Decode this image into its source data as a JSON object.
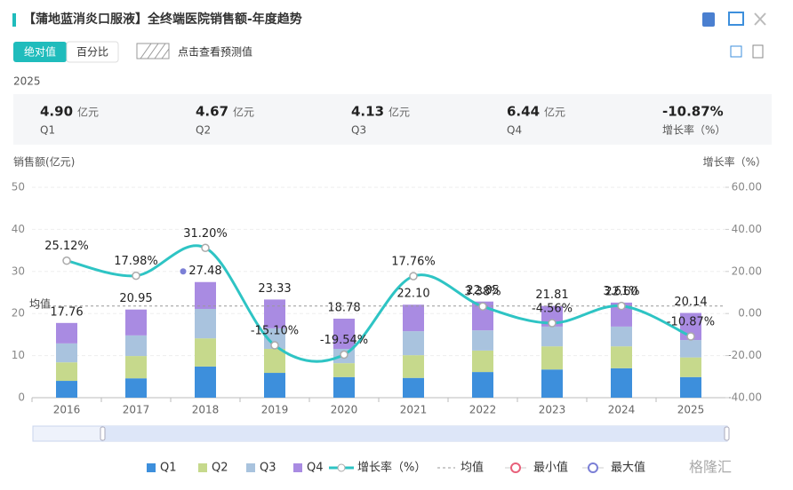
{
  "header": {
    "title": "【蒲地蓝消炎口服液】全终端医院销售额-年度趋势"
  },
  "toolbar": {
    "buttons": [
      "绝对值",
      "百分比"
    ],
    "forecast": "点击查看预测值"
  },
  "summary": {
    "year": "2025",
    "cards": [
      {
        "value": "4.90",
        "unit": "亿元",
        "label": "Q1"
      },
      {
        "value": "4.67",
        "unit": "亿元",
        "label": "Q2"
      },
      {
        "value": "4.13",
        "unit": "亿元",
        "label": "Q3"
      },
      {
        "value": "6.44",
        "unit": "亿元",
        "label": "Q4"
      },
      {
        "value": "-10.87%",
        "label": "增长率（%）"
      }
    ]
  },
  "chart_data": {
    "type": "bar",
    "y_label": "销售额(亿元)",
    "y2_label": "增长率（%）",
    "categories": [
      "2016",
      "2017",
      "2018",
      "2019",
      "2020",
      "2021",
      "2022",
      "2023",
      "2024",
      "2025"
    ],
    "series": [
      {
        "name": "Q1",
        "color": "#3d8fdc",
        "values": [
          4.0,
          4.6,
          7.4,
          5.9,
          4.9,
          4.7,
          6.1,
          6.7,
          7.0,
          4.9
        ]
      },
      {
        "name": "Q2",
        "color": "#c6d98c",
        "values": [
          4.4,
          5.3,
          6.7,
          5.7,
          3.3,
          5.4,
          5.1,
          5.5,
          5.2,
          4.67
        ]
      },
      {
        "name": "Q3",
        "color": "#a9c3de",
        "values": [
          4.5,
          4.9,
          7.0,
          4.9,
          3.4,
          5.7,
          4.8,
          4.7,
          4.7,
          4.13
        ]
      },
      {
        "name": "Q4",
        "color": "#a98be2",
        "values": [
          4.86,
          6.15,
          6.38,
          6.83,
          7.18,
          6.3,
          6.85,
          4.91,
          5.7,
          6.44
        ]
      },
      {
        "name": "增长率（%）",
        "color": "#2ec4c4",
        "axis": "y2",
        "values": [
          25.12,
          17.98,
          31.2,
          -15.1,
          -19.54,
          17.76,
          3.38,
          -4.56,
          3.61,
          -10.87
        ],
        "value_labels": [
          "25.12%",
          "17.98%",
          "31.20%",
          "-15.10%",
          "-19.54%",
          "17.76%",
          "3.38%",
          "-4.56%",
          "3.61%",
          "-10.87%"
        ]
      }
    ],
    "totals": {
      "values": [
        17.76,
        20.95,
        27.48,
        23.33,
        18.78,
        22.1,
        22.85,
        21.81,
        22.6,
        20.14
      ],
      "value_labels": [
        "17.76",
        "20.95",
        "27.48",
        "23.33",
        "18.78",
        "22.10",
        "22.85",
        "21.81",
        "22.60",
        "20.14"
      ]
    },
    "average": {
      "name": "均值",
      "value": 21.78,
      "color": "#999999"
    },
    "min_marker": {
      "name": "最小值",
      "color": "#e8607a"
    },
    "max_marker": {
      "name": "最大值",
      "color": "#7b7fd6",
      "x": "2018",
      "value": 27.48
    },
    "ylim": [
      0,
      50
    ],
    "yticks": [
      0,
      10,
      20,
      30,
      40,
      50
    ],
    "y2lim": [
      -40,
      60
    ],
    "y2ticks": [
      {
        "value": -40,
        "label": "-40.00"
      },
      {
        "value": -20,
        "label": "-20.00"
      },
      {
        "value": 0,
        "label": "0.00"
      },
      {
        "value": 20,
        "label": "20.00"
      },
      {
        "value": 40,
        "label": "40.00"
      },
      {
        "value": 60,
        "label": "60.00"
      }
    ],
    "grid": true
  },
  "watermark": "格隆汇"
}
